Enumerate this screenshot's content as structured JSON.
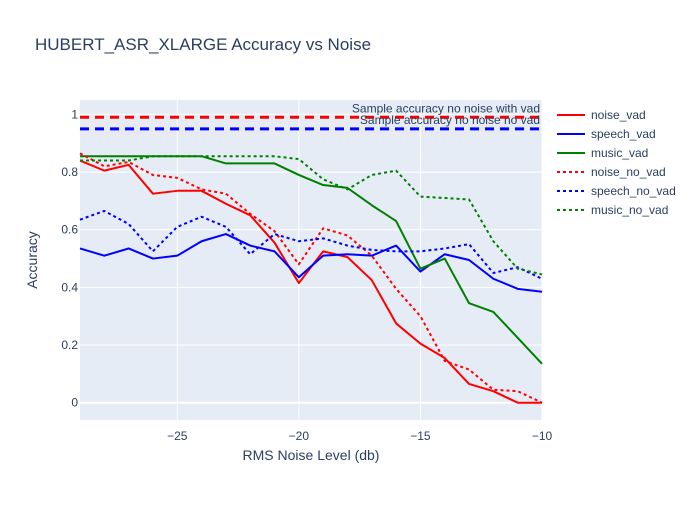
{
  "chart_data": {
    "type": "line",
    "title": "HUBERT_ASR_XLARGE Accuracy vs Noise",
    "xlabel": "RMS Noise Level (db)",
    "ylabel": "Accuracy",
    "xlim": [
      -29,
      -10
    ],
    "ylim": [
      -0.06,
      1.05
    ],
    "x_ticks": [
      -25,
      -20,
      -15,
      -10
    ],
    "x_tick_labels": [
      "−25",
      "−20",
      "−15",
      "−10"
    ],
    "y_ticks": [
      0,
      0.2,
      0.4,
      0.6,
      0.8,
      1
    ],
    "y_tick_labels": [
      "0",
      "0.2",
      "0.4",
      "0.6",
      "0.8",
      "1"
    ],
    "grid": true,
    "legend_position": "right",
    "plot_background": "#E5ECF6",
    "x": [
      -29,
      -28,
      -27,
      -26,
      -25,
      -24,
      -23,
      -22,
      -21,
      -20,
      -19,
      -18,
      -17,
      -16,
      -15,
      -14,
      -13,
      -12,
      -11,
      -10
    ],
    "series": [
      {
        "name": "noise_vad",
        "color": "#ff0000",
        "dash": "solid",
        "values": [
          0.84,
          0.805,
          0.825,
          0.725,
          0.735,
          0.735,
          0.69,
          0.65,
          0.555,
          0.415,
          0.525,
          0.505,
          0.425,
          0.275,
          0.205,
          0.155,
          0.065,
          0.04,
          0.0,
          0.0
        ]
      },
      {
        "name": "speech_vad",
        "color": "#0000ff",
        "dash": "solid",
        "values": [
          0.535,
          0.51,
          0.535,
          0.5,
          0.51,
          0.56,
          0.585,
          0.545,
          0.525,
          0.435,
          0.51,
          0.515,
          0.51,
          0.545,
          0.455,
          0.515,
          0.495,
          0.43,
          0.395,
          0.385
        ]
      },
      {
        "name": "music_vad",
        "color": "#008000",
        "dash": "solid",
        "values": [
          0.855,
          0.855,
          0.855,
          0.855,
          0.855,
          0.855,
          0.83,
          0.83,
          0.83,
          0.79,
          0.755,
          0.745,
          0.685,
          0.63,
          0.465,
          0.5,
          0.345,
          0.315,
          0.225,
          0.135
        ]
      },
      {
        "name": "noise_no_vad",
        "color": "#ff0000",
        "dash": "dot",
        "values": [
          0.865,
          0.82,
          0.835,
          0.79,
          0.78,
          0.74,
          0.725,
          0.655,
          0.595,
          0.48,
          0.605,
          0.58,
          0.51,
          0.395,
          0.3,
          0.145,
          0.115,
          0.045,
          0.04,
          0.0
        ]
      },
      {
        "name": "speech_no_vad",
        "color": "#0000ff",
        "dash": "dot",
        "values": [
          0.635,
          0.665,
          0.62,
          0.525,
          0.61,
          0.645,
          0.61,
          0.515,
          0.585,
          0.56,
          0.57,
          0.545,
          0.53,
          0.525,
          0.525,
          0.535,
          0.55,
          0.45,
          0.47,
          0.43
        ]
      },
      {
        "name": "music_no_vad",
        "color": "#008000",
        "dash": "dot",
        "values": [
          0.84,
          0.84,
          0.84,
          0.855,
          0.855,
          0.855,
          0.855,
          0.855,
          0.855,
          0.845,
          0.775,
          0.74,
          0.79,
          0.805,
          0.715,
          0.71,
          0.705,
          0.56,
          0.465,
          0.445
        ]
      }
    ],
    "reference_lines": [
      {
        "y": 0.99,
        "color": "#ff0000",
        "label": "Sample accuracy no noise with vad"
      },
      {
        "y": 0.95,
        "color": "#0000ff",
        "label": "Sample accuracy no noise no vad"
      }
    ]
  }
}
